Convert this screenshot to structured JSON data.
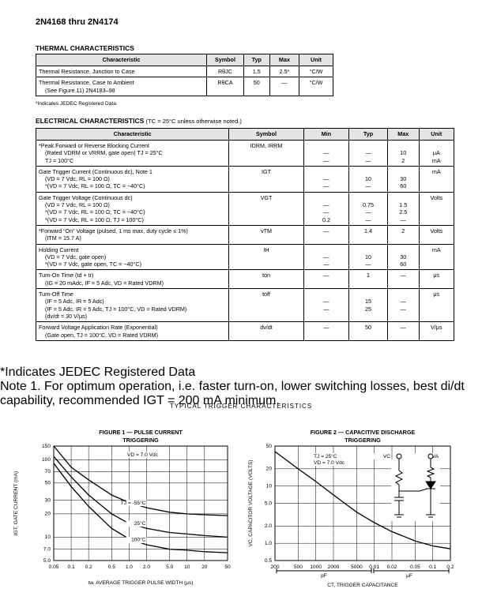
{
  "header": {
    "title": "2N4168 thru 2N4174"
  },
  "thermal": {
    "title": "THERMAL CHARACTERISTICS",
    "columns": [
      "Characteristic",
      "Symbol",
      "Typ",
      "Max",
      "Unit"
    ],
    "rows": [
      [
        [
          "Thermal Resistance, Junction to Case"
        ],
        "RθJC",
        "1.5",
        "2.5*",
        "°C/W"
      ],
      [
        [
          "Thermal Resistance, Case to Ambient",
          "(See Figure 11) 2N4183–98"
        ],
        "RθCA",
        "50",
        "—",
        "°C/W"
      ]
    ],
    "note": "*Indicates JEDEC Registered Data."
  },
  "electrical": {
    "title": "ELECTRICAL CHARACTERISTICS",
    "condition": "(TC = 25°C unless otherwise noted.)",
    "columns": [
      "Characteristic",
      "Symbol",
      "Min",
      "Typ",
      "Max",
      "Unit"
    ],
    "rows": [
      {
        "char": [
          "*Peak Forward or Reverse Blocking Current",
          "(Rated VDRM or VRRM, gate open)   TJ = 25°C",
          "TJ = 100°C"
        ],
        "symbol": [
          "IDRM, IRRM"
        ],
        "min": [
          "—",
          "—"
        ],
        "typ": [
          "—",
          "—"
        ],
        "max": [
          "10",
          "2"
        ],
        "unit": [
          "μA",
          "mA"
        ]
      },
      {
        "char": [
          "Gate Trigger Current (Continuous dc), Note 1",
          "(VD = 7 Vdc, RL = 100 Ω)",
          "*(VD = 7 Vdc, RL = 100 Ω, TC = −40°C)"
        ],
        "symbol": [
          "IGT"
        ],
        "min": [
          "—",
          "—"
        ],
        "typ": [
          "10",
          "—"
        ],
        "max": [
          "30",
          "60"
        ],
        "unit": [
          "mA"
        ]
      },
      {
        "char": [
          "Gate Trigger Voltage (Continuous dc)",
          "(VD = 7 Vdc, RL = 100 Ω)",
          "*(VD = 7 Vdc, RL = 100 Ω, TC = −40°C)",
          "*(VD = 7 Vdc, RL = 100 Ω, TJ = 100°C)"
        ],
        "symbol": [
          "VGT"
        ],
        "min": [
          "—",
          "—",
          "0.2"
        ],
        "typ": [
          "0.75",
          "—",
          "—"
        ],
        "max": [
          "1.5",
          "2.5",
          "—"
        ],
        "unit": [
          "Volts"
        ]
      },
      {
        "char": [
          "*Forward “On” Voltage (pulsed, 1 ms max, duty cycle ≤ 1%)",
          "(ITM = 15.7 A)"
        ],
        "symbol": [
          "vTM"
        ],
        "min": [
          "—"
        ],
        "typ": [
          "1.4"
        ],
        "max": [
          "2"
        ],
        "unit": [
          "Volts"
        ]
      },
      {
        "char": [
          "Holding Current",
          "(VD = 7 Vdc, gate open)",
          "*(VD = 7 Vdc, gate open, TC = −40°C)"
        ],
        "symbol": [
          "IH"
        ],
        "min": [
          "—",
          "—"
        ],
        "typ": [
          "10",
          "—"
        ],
        "max": [
          "30",
          "60"
        ],
        "unit": [
          "mA"
        ]
      },
      {
        "char": [
          "Turn-On Time (td + tr)",
          "(IG = 20 mAdc, IF = 5 Adc, VD = Rated VDRM)"
        ],
        "symbol": [
          "ton"
        ],
        "min": [
          "—"
        ],
        "typ": [
          "1"
        ],
        "max": [
          "—"
        ],
        "unit": [
          "μs"
        ]
      },
      {
        "char": [
          "Turn-Off Time",
          "(IF = 5 Adc, IR = 5 Adc)",
          "(IF = 5 Adc, IR = 5 Adc, TJ = 100°C, VD = Rated VDRM)",
          "(dv/dt = 30 V/μs)"
        ],
        "symbol": [
          "toff"
        ],
        "min": [
          "—",
          "—"
        ],
        "typ": [
          "15",
          "25"
        ],
        "max": [
          "—",
          "—"
        ],
        "unit": [
          "μs"
        ]
      },
      {
        "char": [
          "Forward Voltage Application Rate (Exponential)",
          "(Gate open, TJ = 100°C, VD = Rated VDRM)"
        ],
        "symbol": [
          "dv/dt"
        ],
        "min": [
          "—"
        ],
        "typ": [
          "50"
        ],
        "max": [
          "—"
        ],
        "unit": [
          "V/μs"
        ]
      }
    ],
    "notes": [
      "*Indicates JEDEC Registered Data",
      "Note 1. For optimum operation, i.e. faster turn-on, lower switching losses, best di/dt capability, recommended IGT = 200 mA minimum."
    ]
  },
  "section_title": "TYPICAL TRIGGER CHARACTERISTICS",
  "chart_data": [
    {
      "type": "line",
      "title": [
        "FIGURE 1 — PULSE CURRENT",
        "TRIGGERING"
      ],
      "xlabel": "tw, AVERAGE TRIGGER PULSE WIDTH (μs)",
      "ylabel": "IGT, GATE CURRENT (mA)",
      "xscale": "log",
      "yscale": "log",
      "grid": true,
      "xlim": [
        0.05,
        50
      ],
      "ylim": [
        5,
        150
      ],
      "xticks": [
        0.05,
        0.1,
        0.2,
        0.5,
        {
          "value": 1,
          "label": "1.0"
        },
        {
          "value": 2,
          "label": "2.0"
        },
        {
          "value": 5,
          "label": "5.0"
        },
        10,
        20,
        50
      ],
      "yticks": [
        {
          "value": 5,
          "label": "5.0"
        },
        {
          "value": 7,
          "label": "7.0"
        },
        10,
        20,
        30,
        50,
        70,
        100,
        150
      ],
      "x": [
        0.05,
        0.1,
        0.2,
        0.5,
        1,
        2,
        5,
        10,
        20,
        50
      ],
      "series": [
        {
          "name": "TJ = -55°C",
          "color": "#000000",
          "values": [
            150,
            80,
            55,
            35,
            28,
            24,
            21,
            20,
            19.5,
            19
          ]
        },
        {
          "name": "25°C",
          "color": "#000000",
          "values": [
            110,
            60,
            35,
            20,
            15,
            13,
            11.5,
            11,
            10.5,
            10
          ]
        },
        {
          "name": "100°C",
          "color": "#000000",
          "values": [
            90,
            45,
            25,
            13,
            9.5,
            8,
            7,
            6.8,
            6.5,
            6.3
          ]
        }
      ],
      "annotations": [
        "VD = 7.0 Vdc"
      ]
    },
    {
      "type": "line",
      "title": [
        "FIGURE 2 — CAPACITIVE DISCHARGE",
        "TRIGGERING"
      ],
      "xlabel": "CT, TRIGGER CAPACITANCE",
      "ylabel": "VC, CAPACITOR VOLTAGE (VOLTS)",
      "xscale": "log",
      "yscale": "log",
      "grid": true,
      "xlim": [
        200,
        200000
      ],
      "ylim": [
        0.5,
        50
      ],
      "xticks": [
        200,
        500,
        1000,
        2000,
        5000,
        {
          "value": 10000,
          "label": "0.01"
        },
        {
          "value": 20000,
          "label": "0.02"
        },
        {
          "value": 50000,
          "label": "0.05"
        },
        {
          "value": 100000,
          "label": "0.1"
        },
        {
          "value": 200000,
          "label": "0.2"
        }
      ],
      "yticks": [
        0.5,
        {
          "value": 1,
          "label": "1.0"
        },
        {
          "value": 2,
          "label": "2.0"
        },
        {
          "value": 5,
          "label": "5.0"
        },
        10,
        20,
        50
      ],
      "x": [
        200,
        500,
        1000,
        2000,
        5000,
        10000,
        20000,
        50000,
        100000,
        200000
      ],
      "series": [
        {
          "color": "#000000",
          "values": [
            40,
            20,
            12,
            7,
            3.5,
            2.3,
            1.6,
            1.1,
            0.9,
            0.8
          ]
        }
      ],
      "annotations": [
        "TJ = 25°C",
        "VD = 7.0 Vdc",
        "VC",
        "VA",
        "CT",
        "pF",
        "μF"
      ]
    }
  ]
}
